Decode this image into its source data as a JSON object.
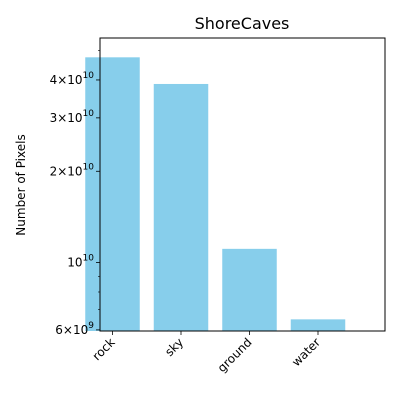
{
  "chart_data": {
    "type": "bar",
    "title": "ShoreCaves",
    "xlabel": "",
    "ylabel": "Number of Pixels",
    "yscale": "log",
    "ylim": [
      5950000000,
      55000000000
    ],
    "categories": [
      "rock",
      "sky",
      "ground",
      "water"
    ],
    "values": [
      47500000000,
      38800000000,
      11100000000,
      6500000000
    ],
    "bar_color": "#87CEEB",
    "grid": false,
    "legend": "none",
    "yticks": [
      {
        "value": 6000000000,
        "mant": "6",
        "exp": "9"
      },
      {
        "value": 10000000000,
        "mant": "",
        "exp": "10"
      },
      {
        "value": 20000000000,
        "mant": "2",
        "exp": "10"
      },
      {
        "value": 30000000000,
        "mant": "3",
        "exp": "10"
      },
      {
        "value": 40000000000,
        "mant": "4",
        "exp": "10"
      }
    ],
    "minor_yticks": [
      7000000000,
      8000000000,
      9000000000,
      50000000000
    ]
  }
}
